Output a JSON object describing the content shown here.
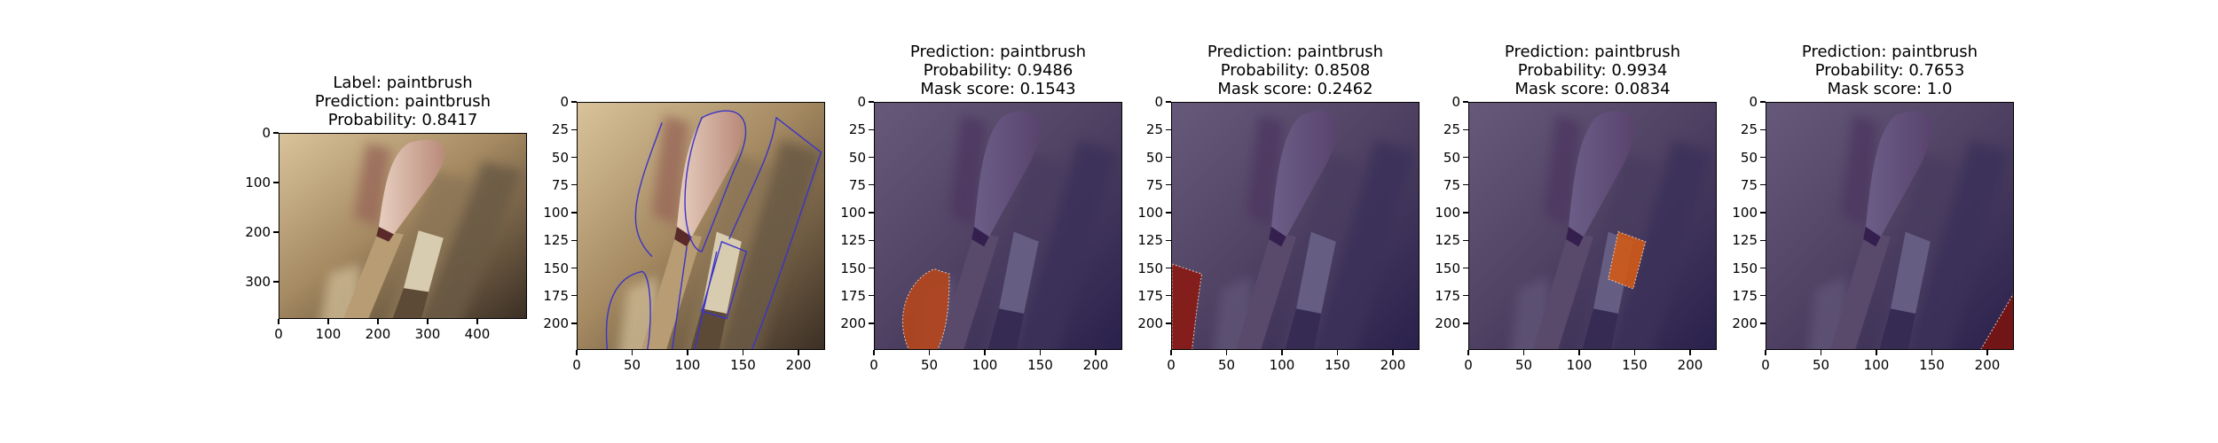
{
  "panels": [
    {
      "title_lines": [
        "Label: paintbrush",
        "Prediction: paintbrush",
        "Probability: 0.8417"
      ],
      "xticks": [
        "0",
        "100",
        "200",
        "300",
        "400"
      ],
      "yticks": [
        "0",
        "100",
        "200",
        "300"
      ],
      "image": "original-photo",
      "overlay": "none",
      "x_range": [
        0,
        500
      ],
      "y_range": [
        0,
        375
      ]
    },
    {
      "title_lines": [],
      "xticks": [
        "0",
        "50",
        "100",
        "150",
        "200"
      ],
      "yticks": [
        "0",
        "25",
        "50",
        "75",
        "100",
        "125",
        "150",
        "175",
        "200"
      ],
      "image": "segmentation-outline",
      "overlay": "contours",
      "x_range": [
        0,
        224
      ],
      "y_range": [
        0,
        224
      ]
    },
    {
      "title_lines": [
        "Prediction: paintbrush",
        "Probability: 0.9486",
        "Mask score: 0.1543"
      ],
      "xticks": [
        "0",
        "50",
        "100",
        "150",
        "200"
      ],
      "yticks": [
        "0",
        "25",
        "50",
        "75",
        "100",
        "125",
        "150",
        "175",
        "200"
      ],
      "image": "masked-photo",
      "overlay": "mask-left-lower",
      "mask_color": "#b5461c",
      "x_range": [
        0,
        224
      ],
      "y_range": [
        0,
        224
      ]
    },
    {
      "title_lines": [
        "Prediction: paintbrush",
        "Probability: 0.8508",
        "Mask score: 0.2462"
      ],
      "xticks": [
        "0",
        "50",
        "100",
        "150",
        "200"
      ],
      "yticks": [
        "0",
        "25",
        "50",
        "75",
        "100",
        "125",
        "150",
        "175",
        "200"
      ],
      "image": "masked-photo",
      "overlay": "mask-left-edge",
      "mask_color": "#8a1a14",
      "x_range": [
        0,
        224
      ],
      "y_range": [
        0,
        224
      ]
    },
    {
      "title_lines": [
        "Prediction: paintbrush",
        "Probability: 0.9934",
        "Mask score: 0.0834"
      ],
      "xticks": [
        "0",
        "50",
        "100",
        "150",
        "200"
      ],
      "yticks": [
        "0",
        "25",
        "50",
        "75",
        "100",
        "125",
        "150",
        "175",
        "200"
      ],
      "image": "masked-photo",
      "overlay": "mask-ferrule",
      "mask_color": "#d05a18",
      "x_range": [
        0,
        224
      ],
      "y_range": [
        0,
        224
      ]
    },
    {
      "title_lines": [
        "Prediction: paintbrush",
        "Probability: 0.7653",
        "Mask score: 1.0"
      ],
      "xticks": [
        "0",
        "50",
        "100",
        "150",
        "200"
      ],
      "yticks": [
        "0",
        "25",
        "50",
        "75",
        "100",
        "125",
        "150",
        "175",
        "200"
      ],
      "image": "masked-photo",
      "overlay": "mask-bottom-right",
      "mask_color": "#7a1410",
      "x_range": [
        0,
        224
      ],
      "y_range": [
        0,
        224
      ]
    }
  ]
}
